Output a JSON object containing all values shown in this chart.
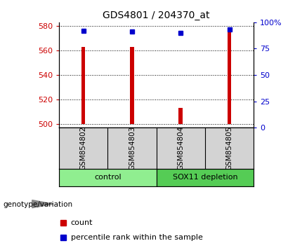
{
  "title": "GDS4801 / 204370_at",
  "samples": [
    "GSM854802",
    "GSM854803",
    "GSM854804",
    "GSM854805"
  ],
  "count_values": [
    563,
    563,
    513,
    576
  ],
  "percentile_values": [
    92,
    91,
    90,
    93
  ],
  "baseline": 500,
  "ylim_left": [
    497,
    583
  ],
  "yticks_left": [
    500,
    520,
    540,
    560,
    580
  ],
  "ylim_right": [
    0,
    100
  ],
  "yticks_right": [
    0,
    25,
    50,
    75,
    100
  ],
  "bar_color": "#cc0000",
  "marker_color": "#0000cc",
  "bar_width": 0.08,
  "groups": [
    {
      "label": "control",
      "indices": [
        0,
        1
      ],
      "color": "#90ee90"
    },
    {
      "label": "SOX11 depletion",
      "indices": [
        2,
        3
      ],
      "color": "#55cc55"
    }
  ],
  "legend_label_count": "count",
  "legend_label_percentile": "percentile rank within the sample",
  "genotype_label": "genotype/variation",
  "xlabel_color": "#cc0000",
  "ylabel_right_color": "#0000cc",
  "plot_bg": "#ffffff",
  "label_bg": "#d3d3d3"
}
